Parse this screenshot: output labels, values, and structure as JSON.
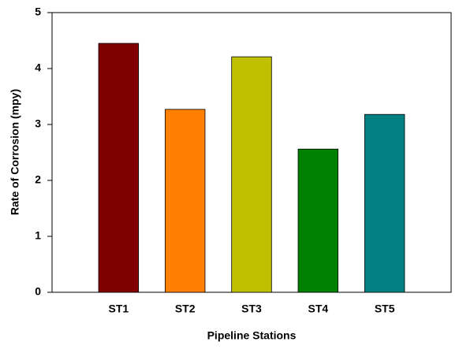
{
  "chart_data": {
    "type": "bar",
    "x_label": "Pipeline Stations",
    "y_label": "Rate of Corrosion (mpy)",
    "categories": [
      "ST1",
      "ST2",
      "ST3",
      "ST4",
      "ST5"
    ],
    "values": [
      4.45,
      3.27,
      4.21,
      2.56,
      3.18
    ],
    "colors": [
      "#800000",
      "#ff8000",
      "#c0c000",
      "#008000",
      "#008080"
    ],
    "ylim": [
      0,
      5
    ],
    "yticks": [
      0,
      1,
      2,
      3,
      4,
      5
    ],
    "grid": false
  }
}
